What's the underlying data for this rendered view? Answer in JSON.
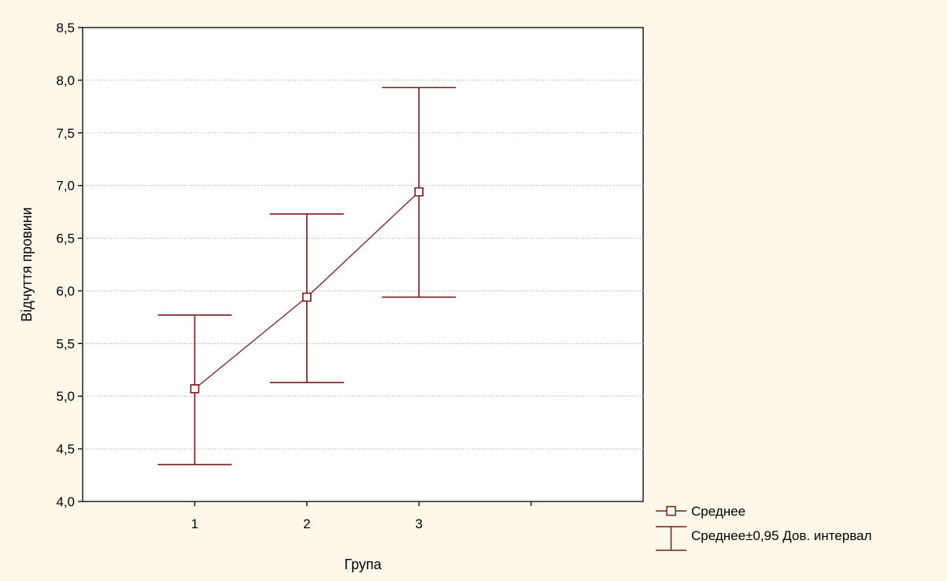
{
  "chart_data": {
    "type": "line",
    "title": "",
    "xlabel": "Група",
    "ylabel": "Відчуття провини",
    "categories": [
      "1",
      "2",
      "3"
    ],
    "x_ticks": [
      "1",
      "2",
      "3"
    ],
    "y_ticks": [
      "4,0",
      "4,5",
      "5,0",
      "5,5",
      "6,0",
      "6,5",
      "7,0",
      "7,5",
      "8,0",
      "8,5"
    ],
    "ylim": [
      4.0,
      8.5
    ],
    "grid": "horizontal dotted",
    "legend_position": "bottom-right outside",
    "series": [
      {
        "name": "Среднее",
        "values": [
          5.07,
          5.94,
          6.94
        ]
      },
      {
        "name": "Среднее±0,95 Дов. интервал",
        "lower": [
          4.35,
          5.13,
          5.94
        ],
        "upper": [
          5.77,
          6.73,
          7.93
        ]
      }
    ],
    "colors": {
      "background": "#fdf8ea",
      "plot_area": "#ffffff",
      "series": "#7a1a1a",
      "axis": "#000000",
      "grid": "#a0a0a0"
    }
  }
}
